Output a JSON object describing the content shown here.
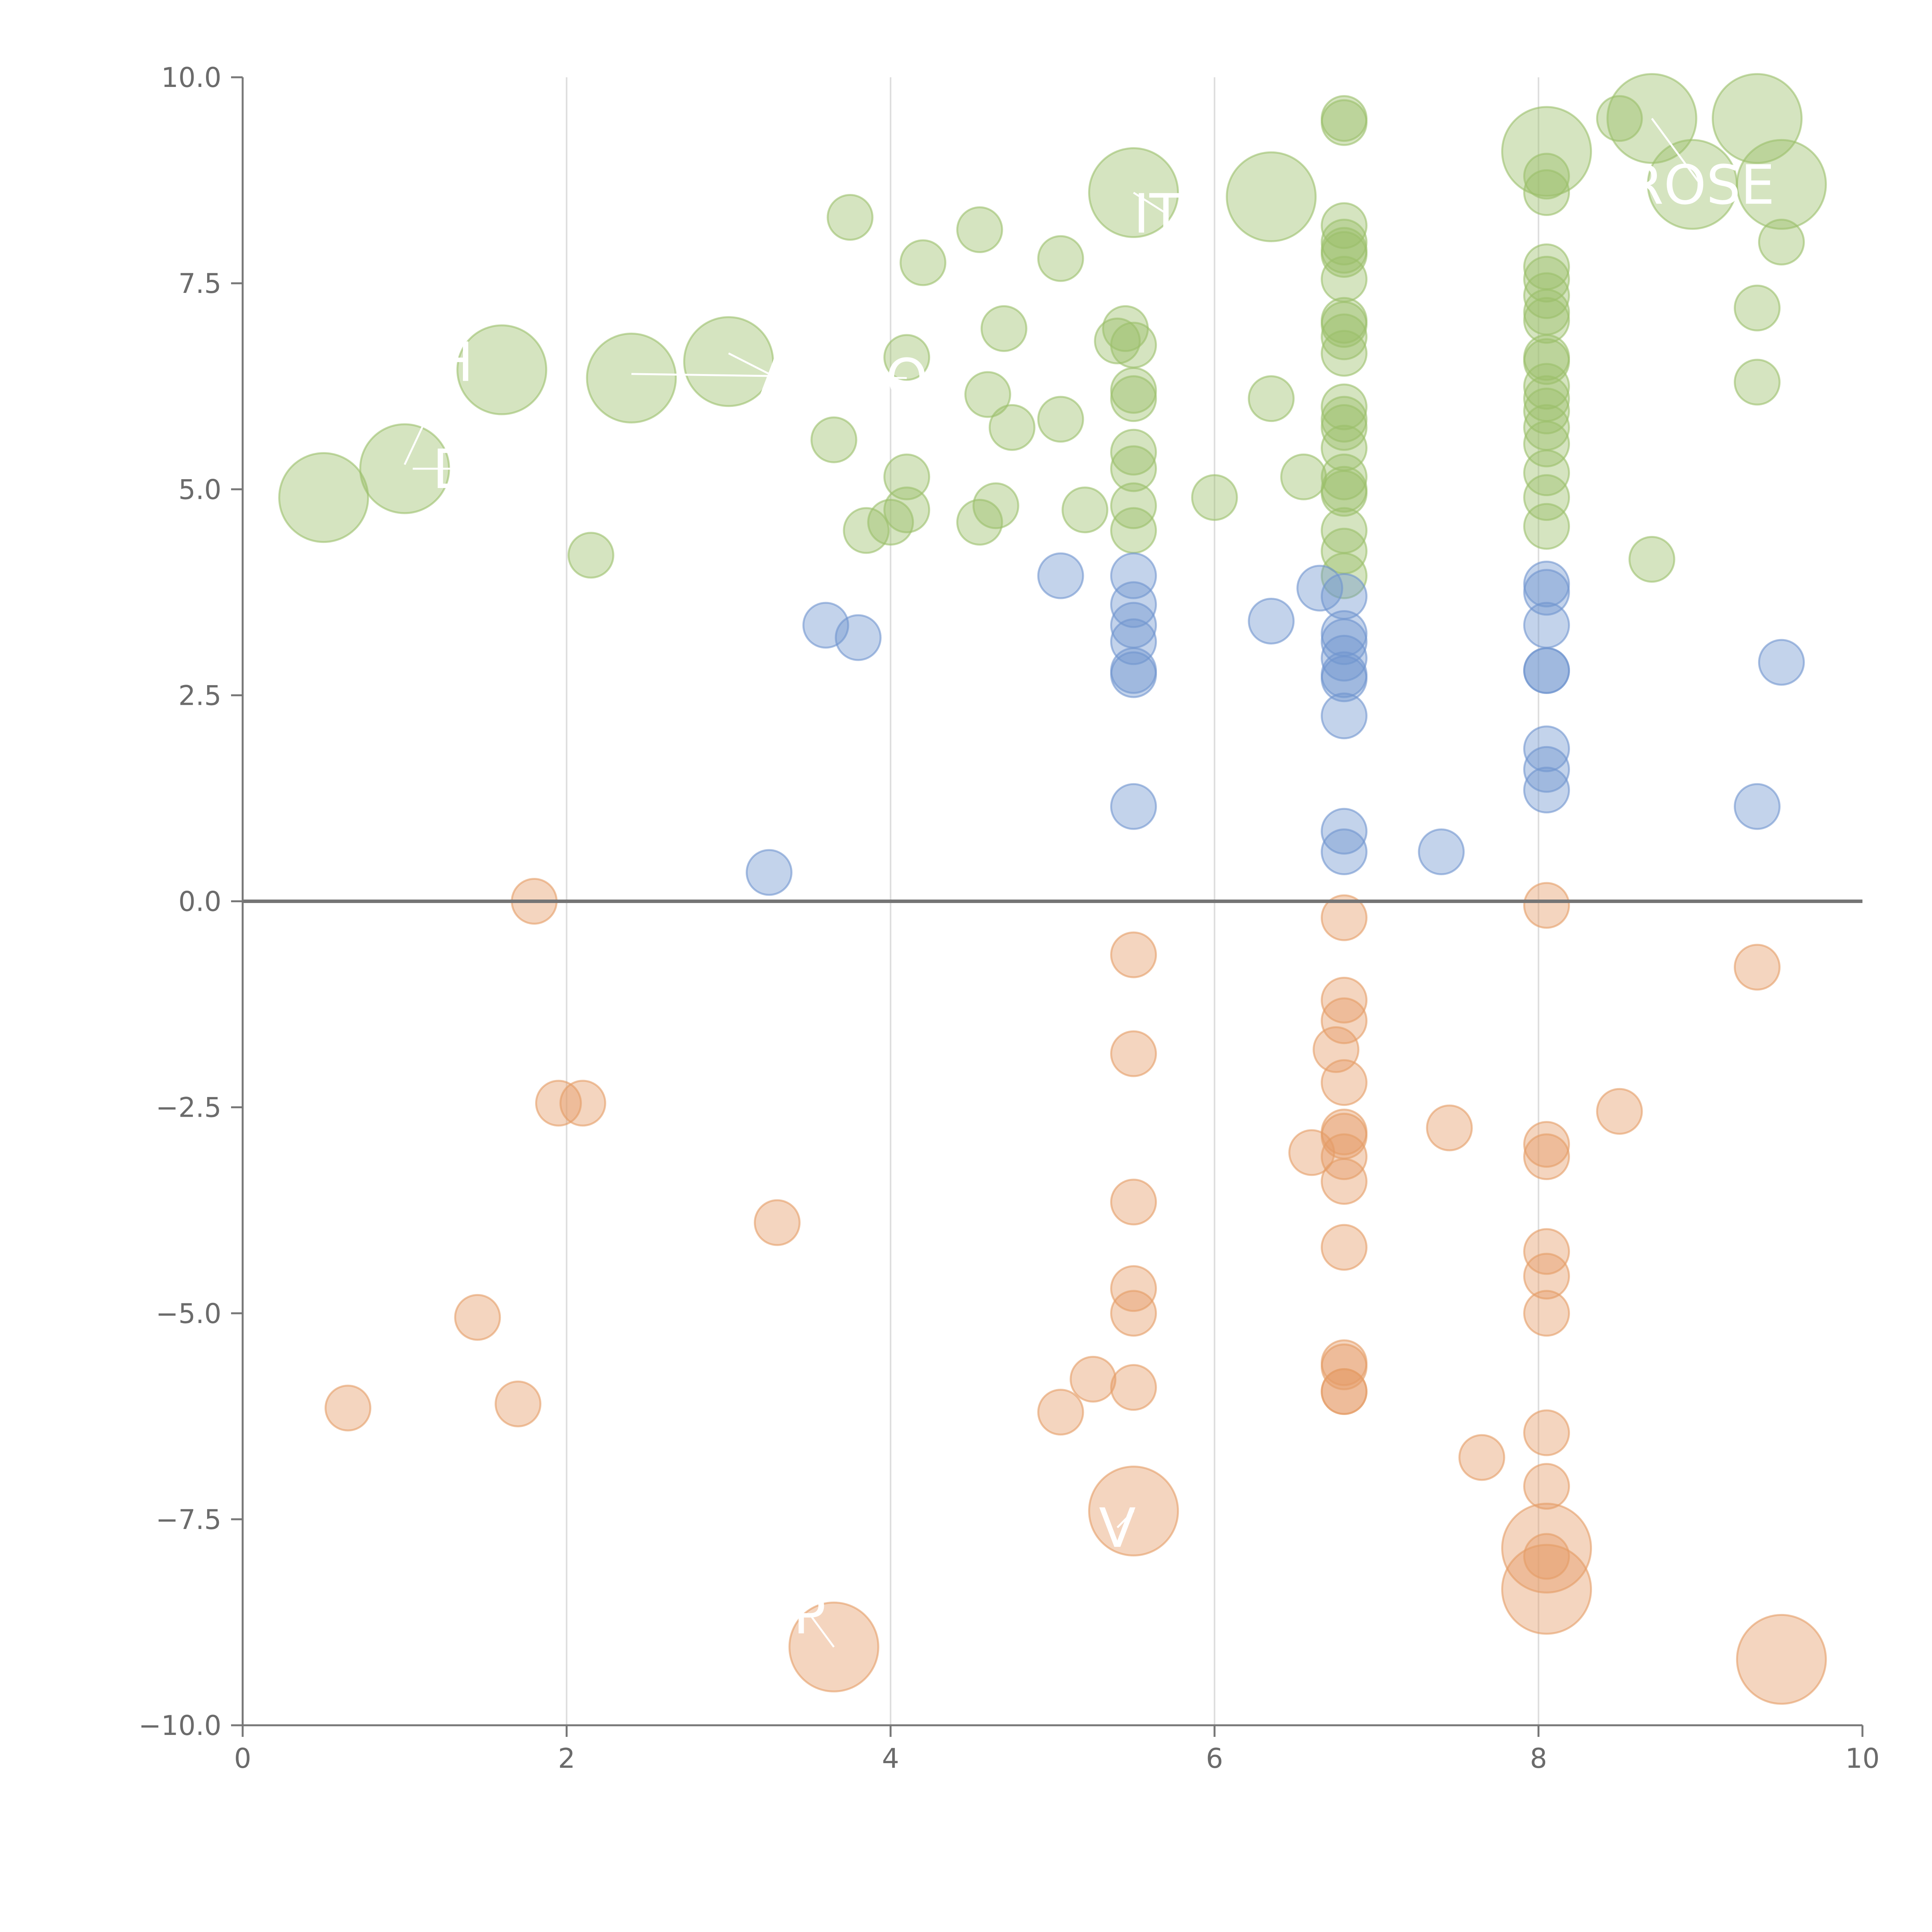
{
  "chart_data": {
    "type": "scatter",
    "title": "",
    "xlabel": "",
    "ylabel": "",
    "xlim": [
      0,
      10
    ],
    "ylim": [
      -10,
      10
    ],
    "x_ticks": [
      0,
      2,
      4,
      6,
      8,
      10
    ],
    "x_tick_labels": [
      "0",
      "2",
      "4",
      "6",
      "8",
      "10"
    ],
    "y_ticks": [
      10,
      7.5,
      5,
      2.5,
      0,
      -2.5,
      -5,
      -7.5,
      -10
    ],
    "y_tick_labels": [
      "10.0",
      "7.5",
      "5.0",
      "2.5",
      "0.0",
      "−2.5",
      "−5.0",
      "−7.5",
      "−10.0"
    ],
    "grid_x": [
      2,
      4,
      6,
      8
    ],
    "zero_line": 0,
    "series": [
      {
        "name": "green",
        "color": "#9bbf6a",
        "points": [
          [
            0.5,
            4.9,
            2
          ],
          [
            1.0,
            5.25,
            2
          ],
          [
            1.6,
            6.45,
            2
          ],
          [
            2.4,
            6.35,
            2
          ],
          [
            3.0,
            6.55,
            2
          ],
          [
            2.15,
            4.2,
            1
          ],
          [
            3.65,
            5.6,
            1
          ],
          [
            3.75,
            8.3,
            1
          ],
          [
            3.85,
            4.5,
            1
          ],
          [
            4.0,
            4.6,
            1
          ],
          [
            4.1,
            6.6,
            1
          ],
          [
            4.1,
            5.15,
            1
          ],
          [
            4.1,
            4.75,
            1
          ],
          [
            4.2,
            7.75,
            1
          ],
          [
            4.55,
            8.15,
            1
          ],
          [
            4.55,
            4.6,
            1
          ],
          [
            4.6,
            6.15,
            1
          ],
          [
            4.65,
            4.8,
            1
          ],
          [
            4.7,
            6.95,
            1
          ],
          [
            4.75,
            5.75,
            1
          ],
          [
            5.05,
            7.8,
            1
          ],
          [
            5.05,
            5.85,
            1
          ],
          [
            5.2,
            4.75,
            1
          ],
          [
            5.4,
            6.8,
            1
          ],
          [
            5.45,
            6.95,
            1
          ],
          [
            5.5,
            8.6,
            2
          ],
          [
            5.5,
            6.75,
            1
          ],
          [
            5.5,
            6.2,
            1
          ],
          [
            5.5,
            6.1,
            1
          ],
          [
            5.5,
            5.45,
            1
          ],
          [
            5.5,
            5.25,
            1
          ],
          [
            5.5,
            4.8,
            1
          ],
          [
            5.5,
            4.5,
            1
          ],
          [
            6.0,
            4.9,
            1
          ],
          [
            6.35,
            8.55,
            2
          ],
          [
            6.35,
            6.1,
            1
          ],
          [
            6.55,
            5.15,
            1
          ],
          [
            6.8,
            9.5,
            1
          ],
          [
            6.8,
            9.45,
            1
          ],
          [
            6.8,
            8.2,
            1
          ],
          [
            6.8,
            8.0,
            1
          ],
          [
            6.8,
            7.9,
            1
          ],
          [
            6.8,
            7.85,
            1
          ],
          [
            6.8,
            7.55,
            1
          ],
          [
            6.8,
            7.05,
            1
          ],
          [
            6.8,
            7.0,
            1
          ],
          [
            6.8,
            6.85,
            1
          ],
          [
            6.8,
            6.65,
            1
          ],
          [
            6.8,
            6.0,
            1
          ],
          [
            6.8,
            5.85,
            1
          ],
          [
            6.8,
            5.75,
            1
          ],
          [
            6.8,
            5.5,
            1
          ],
          [
            6.8,
            5.15,
            1
          ],
          [
            6.8,
            5.0,
            1
          ],
          [
            6.8,
            4.95,
            1
          ],
          [
            6.8,
            4.5,
            1
          ],
          [
            6.8,
            4.25,
            1
          ],
          [
            6.8,
            3.95,
            1
          ],
          [
            8.05,
            9.1,
            2
          ],
          [
            8.05,
            8.8,
            1
          ],
          [
            8.05,
            8.6,
            1
          ],
          [
            8.05,
            7.7,
            1
          ],
          [
            8.05,
            7.55,
            1
          ],
          [
            8.05,
            7.35,
            1
          ],
          [
            8.05,
            7.15,
            1
          ],
          [
            8.05,
            7.05,
            1
          ],
          [
            8.05,
            6.6,
            1
          ],
          [
            8.05,
            6.55,
            1
          ],
          [
            8.05,
            6.25,
            1
          ],
          [
            8.05,
            6.1,
            1
          ],
          [
            8.05,
            5.95,
            1
          ],
          [
            8.05,
            5.75,
            1
          ],
          [
            8.05,
            5.55,
            1
          ],
          [
            8.05,
            5.2,
            1
          ],
          [
            8.05,
            4.9,
            1
          ],
          [
            8.05,
            4.55,
            1
          ],
          [
            8.5,
            9.5,
            1
          ],
          [
            8.7,
            9.5,
            2
          ],
          [
            8.7,
            4.15,
            1
          ],
          [
            8.95,
            8.7,
            2
          ],
          [
            9.35,
            9.5,
            2
          ],
          [
            9.35,
            7.2,
            1
          ],
          [
            9.35,
            6.3,
            1
          ],
          [
            9.5,
            8.7,
            2
          ],
          [
            9.5,
            8.0,
            1
          ]
        ]
      },
      {
        "name": "blue",
        "color": "#6f95cf",
        "points": [
          [
            3.25,
            0.35,
            1
          ],
          [
            3.6,
            3.35,
            1
          ],
          [
            3.8,
            3.2,
            1
          ],
          [
            5.05,
            3.95,
            1
          ],
          [
            5.5,
            3.95,
            1
          ],
          [
            5.5,
            3.6,
            1
          ],
          [
            5.5,
            3.35,
            1
          ],
          [
            5.5,
            3.15,
            1
          ],
          [
            5.5,
            2.8,
            1
          ],
          [
            5.5,
            2.75,
            1
          ],
          [
            5.5,
            1.15,
            1
          ],
          [
            6.35,
            3.4,
            1
          ],
          [
            6.65,
            3.8,
            1
          ],
          [
            6.8,
            3.7,
            1
          ],
          [
            6.8,
            3.25,
            1
          ],
          [
            6.8,
            3.15,
            1
          ],
          [
            6.8,
            2.95,
            1
          ],
          [
            6.8,
            2.75,
            1
          ],
          [
            6.8,
            2.7,
            1
          ],
          [
            6.8,
            2.25,
            1
          ],
          [
            6.8,
            0.85,
            1
          ],
          [
            6.8,
            0.6,
            1
          ],
          [
            7.4,
            0.6,
            1
          ],
          [
            8.05,
            3.85,
            1
          ],
          [
            8.05,
            3.75,
            1
          ],
          [
            8.05,
            3.35,
            1
          ],
          [
            8.05,
            2.8,
            1
          ],
          [
            8.05,
            2.8,
            1
          ],
          [
            8.05,
            1.85,
            1
          ],
          [
            8.05,
            1.6,
            1
          ],
          [
            8.05,
            1.35,
            1
          ],
          [
            9.35,
            1.15,
            1
          ],
          [
            9.5,
            2.9,
            1
          ]
        ]
      },
      {
        "name": "orange",
        "color": "#e49c66",
        "points": [
          [
            0.65,
            -6.15,
            1
          ],
          [
            1.45,
            -5.05,
            1
          ],
          [
            1.7,
            -6.1,
            1
          ],
          [
            1.8,
            0.0,
            1
          ],
          [
            1.95,
            -2.45,
            1
          ],
          [
            2.1,
            -2.45,
            1
          ],
          [
            3.3,
            -3.9,
            1
          ],
          [
            3.65,
            -9.05,
            2
          ],
          [
            5.05,
            -6.2,
            1
          ],
          [
            5.25,
            -5.8,
            1
          ],
          [
            5.5,
            -0.65,
            1
          ],
          [
            5.5,
            -1.85,
            1
          ],
          [
            5.5,
            -3.65,
            1
          ],
          [
            5.5,
            -4.7,
            1
          ],
          [
            5.5,
            -5.0,
            1
          ],
          [
            5.5,
            -5.9,
            1
          ],
          [
            5.5,
            -7.4,
            2
          ],
          [
            6.6,
            -3.05,
            1
          ],
          [
            6.8,
            -0.2,
            1
          ],
          [
            6.8,
            -1.2,
            1
          ],
          [
            6.8,
            -1.45,
            1
          ],
          [
            6.75,
            -1.8,
            1
          ],
          [
            6.8,
            -2.2,
            1
          ],
          [
            6.8,
            -2.8,
            1
          ],
          [
            6.8,
            -2.85,
            1
          ],
          [
            6.8,
            -3.1,
            1
          ],
          [
            6.8,
            -3.4,
            1
          ],
          [
            6.8,
            -4.2,
            1
          ],
          [
            6.8,
            -5.6,
            1
          ],
          [
            6.8,
            -5.65,
            1
          ],
          [
            6.8,
            -5.95,
            1
          ],
          [
            6.8,
            -5.95,
            1
          ],
          [
            7.45,
            -2.75,
            1
          ],
          [
            7.65,
            -6.75,
            1
          ],
          [
            8.05,
            -0.05,
            1
          ],
          [
            8.05,
            -2.95,
            1
          ],
          [
            8.05,
            -3.1,
            1
          ],
          [
            8.05,
            -4.25,
            1
          ],
          [
            8.05,
            -4.55,
            1
          ],
          [
            8.05,
            -5.0,
            1
          ],
          [
            8.05,
            -6.45,
            1
          ],
          [
            8.05,
            -7.1,
            1
          ],
          [
            8.05,
            -7.85,
            2
          ],
          [
            8.05,
            -7.95,
            1
          ],
          [
            8.05,
            -8.35,
            2
          ],
          [
            8.5,
            -2.55,
            1
          ],
          [
            9.35,
            -0.8,
            1
          ],
          [
            9.5,
            -9.2,
            2
          ]
        ]
      }
    ],
    "annotations": [
      {
        "text": "H",
        "x": 1.3,
        "y": 6.55,
        "ax": 1.0,
        "ay": 5.3
      },
      {
        "text": "D",
        "x": 1.3,
        "y": 5.25,
        "ax": 1.05,
        "ay": 5.25
      },
      {
        "text": "A",
        "x": 3.3,
        "y": 6.35,
        "ax": 3.0,
        "ay": 6.65
      },
      {
        "text": "O",
        "x": 4.1,
        "y": 6.35,
        "ax": 2.4,
        "ay": 6.4
      },
      {
        "text": "ITI",
        "x": 5.7,
        "y": 8.35,
        "ax": 5.5,
        "ay": 8.6
      },
      {
        "text": "ROSE",
        "x": 9.0,
        "y": 8.7,
        "ax": 8.7,
        "ay": 9.5
      },
      {
        "text": "V",
        "x": 5.4,
        "y": -7.6,
        "ax": 5.5,
        "ay": -7.4
      },
      {
        "text": "P",
        "x": 3.5,
        "y": -8.65,
        "ax": 3.65,
        "ay": -9.05
      }
    ]
  }
}
